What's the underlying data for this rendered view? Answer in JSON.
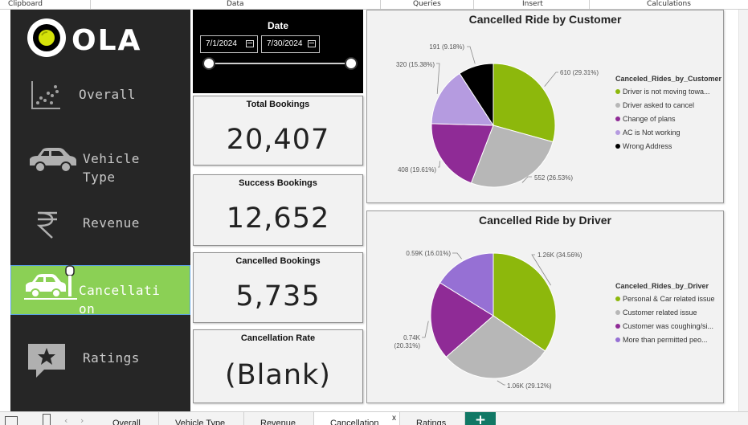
{
  "ribbon": {
    "groups": [
      "Clipboard",
      "Data",
      "Queries",
      "Insert",
      "Calculations"
    ]
  },
  "brand": {
    "logo_text": "OLA"
  },
  "nav": {
    "items": [
      {
        "label": "Overall",
        "icon": "scatter-chart-icon"
      },
      {
        "label": "Vehicle\nType",
        "icon": "car-icon"
      },
      {
        "label": "Revenue",
        "icon": "rupee-icon"
      },
      {
        "label": "Cancellati\non",
        "icon": "car-crash-icon",
        "active": true
      },
      {
        "label": "Ratings",
        "icon": "star-comment-icon"
      }
    ]
  },
  "date_slicer": {
    "title": "Date",
    "start": "7/1/2024",
    "end": "7/30/2024"
  },
  "kpis": [
    {
      "title": "Total Bookings",
      "value": "20,407"
    },
    {
      "title": "Success Bookings",
      "value": "12,652"
    },
    {
      "title": "Cancelled Bookings",
      "value": "5,735"
    },
    {
      "title": "Cancellation Rate",
      "value": "(Blank)"
    }
  ],
  "colors": {
    "green": "#8db80c",
    "gray": "#b7b7b7",
    "purple": "#8f2b96",
    "lavender": "#a98ee0",
    "black": "#000000",
    "violet": "#9670d4"
  },
  "chart_data": [
    {
      "type": "pie",
      "title": "Cancelled Ride by Customer",
      "legend_title": "Canceled_Rides_by_Customer",
      "legend_position": "right",
      "labels": [
        "Driver is not moving towa...",
        "Driver asked to cancel",
        "Change of plans",
        "AC is Not working",
        "Wrong Address"
      ],
      "values": [
        610,
        552,
        408,
        320,
        191
      ],
      "data_labels": [
        "610 (29.31%)",
        "552 (26.53%)",
        "408 (19.61%)",
        "320 (15.38%)",
        "191 (9.18%)"
      ],
      "colors": [
        "#8db80c",
        "#b7b7b7",
        "#8f2b96",
        "#b59be0",
        "#000000"
      ]
    },
    {
      "type": "pie",
      "title": "Cancelled Ride by Driver",
      "legend_title": "Canceled_Rides_by_Driver",
      "legend_position": "right",
      "labels": [
        "Personal & Car related issue",
        "Customer related issue",
        "Customer was coughing/si...",
        "More than permitted peo..."
      ],
      "values": [
        1260,
        1060,
        740,
        590
      ],
      "data_labels": [
        "1.26K (34.56%)",
        "1.06K (29.12%)",
        "0.74K (20.31%)",
        "0.59K (16.01%)"
      ],
      "colors": [
        "#8db80c",
        "#b7b7b7",
        "#8f2b96",
        "#9670d4"
      ]
    }
  ],
  "tabs": [
    "Overall",
    "Vehicle Type",
    "Revenue",
    "Cancellation",
    "Ratings"
  ],
  "tab_close": "x",
  "tab_add": "+"
}
